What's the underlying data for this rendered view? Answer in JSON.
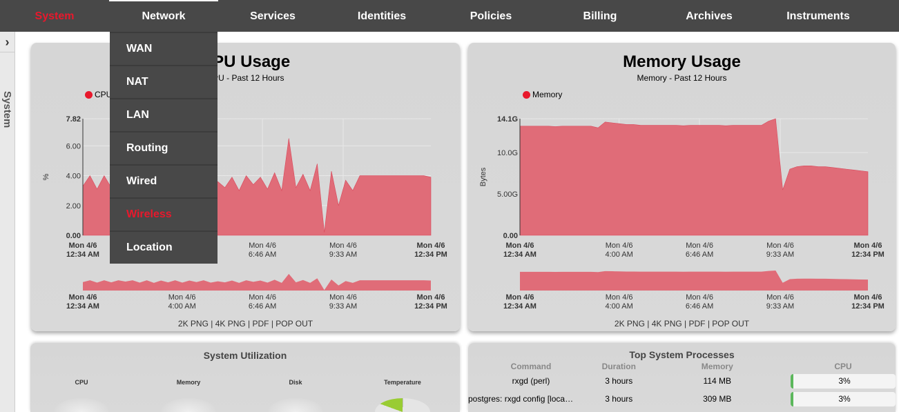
{
  "nav": {
    "items": [
      "System",
      "Network",
      "Services",
      "Identities",
      "Policies",
      "Billing",
      "Archives",
      "Instruments"
    ],
    "active": "System",
    "open": "Network"
  },
  "network_menu": {
    "items": [
      "WAN",
      "NAT",
      "LAN",
      "Routing",
      "Wired",
      "Wireless",
      "Location"
    ],
    "active": "Wireless"
  },
  "sidebar": {
    "label": "System",
    "toggle_icon": "chevron-right-icon"
  },
  "cpu_panel": {
    "title": "CPU Usage",
    "subtitle": "CPU - Past 12 Hours",
    "legend": "CPU",
    "export_links": "2K PNG | 4K PNG | PDF | POP OUT"
  },
  "memory_panel": {
    "title": "Memory Usage",
    "subtitle": "Memory - Past 12 Hours",
    "legend": "Memory",
    "export_links": "2K PNG | 4K PNG | PDF | POP OUT"
  },
  "chart_data": [
    {
      "type": "area",
      "series": [
        {
          "name": "CPU",
          "color": "#e06c78",
          "values": [
            3.3,
            4.0,
            3.1,
            4.0,
            3.2,
            4.0,
            3.5,
            4.0,
            3.1,
            4.0,
            3.0,
            3.9,
            3.2,
            4.0,
            3.1,
            3.9,
            3.3,
            4.0,
            3.1,
            3.6,
            3.2,
            3.9,
            3.0,
            4.0,
            3.4,
            3.9,
            3.1,
            4.2,
            3.0,
            6.5,
            3.2,
            4.1,
            3.0,
            4.8,
            0.2,
            4.3,
            2.0,
            3.7,
            3.0,
            4.0,
            4.0,
            4.0,
            4.0,
            4.0,
            4.0,
            4.0,
            4.0,
            4.0,
            4.0,
            3.9
          ]
        }
      ],
      "x_ticks": [
        "Mon 4/6\n12:34 AM",
        "Mon 4/6\n4:00 AM",
        "Mon 4/6\n6:46 AM",
        "Mon 4/6\n9:33 AM",
        "Mon 4/6\n12:34 PM"
      ],
      "y_ticks": [
        "0.00",
        "2.00",
        "4.00",
        "6.00",
        "7.82"
      ],
      "ylabel": "%",
      "ylim": [
        0,
        7.82
      ],
      "grid": true
    },
    {
      "type": "area",
      "series": [
        {
          "name": "Memory",
          "color": "#e06c78",
          "values": [
            13.2,
            13.2,
            13.2,
            13.2,
            13.2,
            13.15,
            13.2,
            13.2,
            13.2,
            13.2,
            13.2,
            13.0,
            13.7,
            13.6,
            13.5,
            13.4,
            13.4,
            13.3,
            13.3,
            13.3,
            13.3,
            13.3,
            13.3,
            13.25,
            13.3,
            13.3,
            13.3,
            13.3,
            13.3,
            13.25,
            13.3,
            13.3,
            13.3,
            13.3,
            13.3,
            13.8,
            14.1,
            5.5,
            8.0,
            8.3,
            8.4,
            8.4,
            8.3,
            8.3,
            8.2,
            8.1,
            8.0,
            7.9,
            7.8,
            7.7
          ]
        }
      ],
      "x_ticks": [
        "Mon 4/6\n12:34 AM",
        "Mon 4/6\n4:00 AM",
        "Mon 4/6\n6:46 AM",
        "Mon 4/6\n9:33 AM",
        "Mon 4/6\n12:34 PM"
      ],
      "y_ticks": [
        "0.00",
        "5.00G",
        "10.0G",
        "14.1G"
      ],
      "ylabel": "Bytes",
      "ylim": [
        0,
        14.1
      ],
      "grid": true
    }
  ],
  "utilization": {
    "title": "System Utilization",
    "gauges": [
      "CPU",
      "Memory",
      "Disk",
      "Temperature"
    ]
  },
  "processes": {
    "title": "Top System Processes",
    "columns": [
      "Command",
      "Duration",
      "Memory",
      "CPU"
    ],
    "rows": [
      [
        "rxgd (perl)",
        "3 hours",
        "114 MB",
        "3%"
      ],
      [
        "postgres: rxgd config [loca…",
        "3 hours",
        "309 MB",
        "3%"
      ]
    ]
  }
}
